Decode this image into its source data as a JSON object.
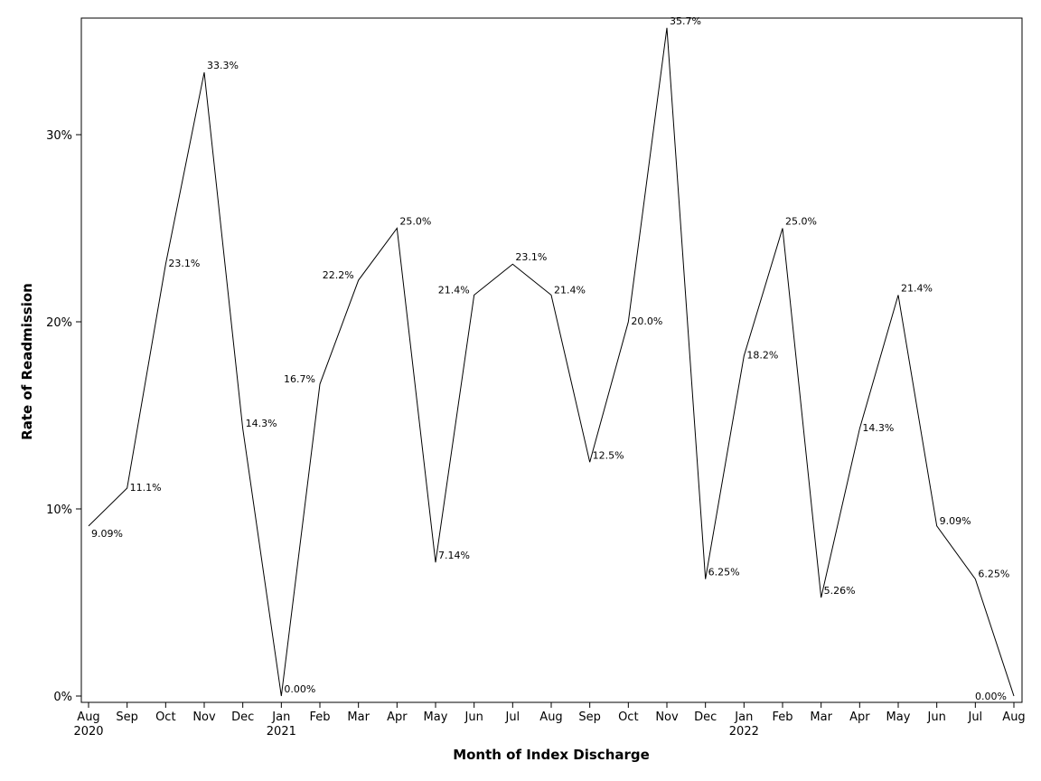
{
  "chart_data": {
    "type": "line",
    "title": "",
    "xlabel": "Month of Index Discharge",
    "ylabel": "Rate of Readmission",
    "ylim": [
      0,
      0.36
    ],
    "y_ticks": [
      {
        "value": 0,
        "label": "0%"
      },
      {
        "value": 0.1,
        "label": "10%"
      },
      {
        "value": 0.2,
        "label": "20%"
      },
      {
        "value": 0.3,
        "label": "30%"
      }
    ],
    "grid": false,
    "legend": "none",
    "line_color": "#000000",
    "x": [
      {
        "month": "Aug",
        "year": "2020",
        "value": 0.0909,
        "label": "9.09%"
      },
      {
        "month": "Sep",
        "year": "",
        "value": 0.1111,
        "label": "11.1%"
      },
      {
        "month": "Oct",
        "year": "",
        "value": 0.2308,
        "label": "23.1%"
      },
      {
        "month": "Nov",
        "year": "",
        "value": 0.3333,
        "label": "33.3%"
      },
      {
        "month": "Dec",
        "year": "",
        "value": 0.1429,
        "label": "14.3%"
      },
      {
        "month": "Jan",
        "year": "2021",
        "value": 0.0,
        "label": "0.00%"
      },
      {
        "month": "Feb",
        "year": "",
        "value": 0.1667,
        "label": "16.7%"
      },
      {
        "month": "Mar",
        "year": "",
        "value": 0.2222,
        "label": "22.2%"
      },
      {
        "month": "Apr",
        "year": "",
        "value": 0.25,
        "label": "25.0%"
      },
      {
        "month": "May",
        "year": "",
        "value": 0.0714,
        "label": "7.14%"
      },
      {
        "month": "Jun",
        "year": "",
        "value": 0.2143,
        "label": "21.4%"
      },
      {
        "month": "Jul",
        "year": "",
        "value": 0.2308,
        "label": "23.1%"
      },
      {
        "month": "Aug",
        "year": "",
        "value": 0.2143,
        "label": "21.4%"
      },
      {
        "month": "Sep",
        "year": "",
        "value": 0.125,
        "label": "12.5%"
      },
      {
        "month": "Oct",
        "year": "",
        "value": 0.2,
        "label": "20.0%"
      },
      {
        "month": "Nov",
        "year": "",
        "value": 0.3571,
        "label": "35.7%"
      },
      {
        "month": "Dec",
        "year": "",
        "value": 0.0625,
        "label": "6.25%"
      },
      {
        "month": "Jan",
        "year": "2022",
        "value": 0.1818,
        "label": "18.2%"
      },
      {
        "month": "Feb",
        "year": "",
        "value": 0.25,
        "label": "25.0%"
      },
      {
        "month": "Mar",
        "year": "",
        "value": 0.0526,
        "label": "5.26%"
      },
      {
        "month": "Apr",
        "year": "",
        "value": 0.1429,
        "label": "14.3%"
      },
      {
        "month": "May",
        "year": "",
        "value": 0.2143,
        "label": "21.4%"
      },
      {
        "month": "Jun",
        "year": "",
        "value": 0.0909,
        "label": "9.09%"
      },
      {
        "month": "Jul",
        "year": "",
        "value": 0.0625,
        "label": "6.25%"
      },
      {
        "month": "Aug",
        "year": "",
        "value": 0.0,
        "label": "0.00%"
      }
    ]
  }
}
